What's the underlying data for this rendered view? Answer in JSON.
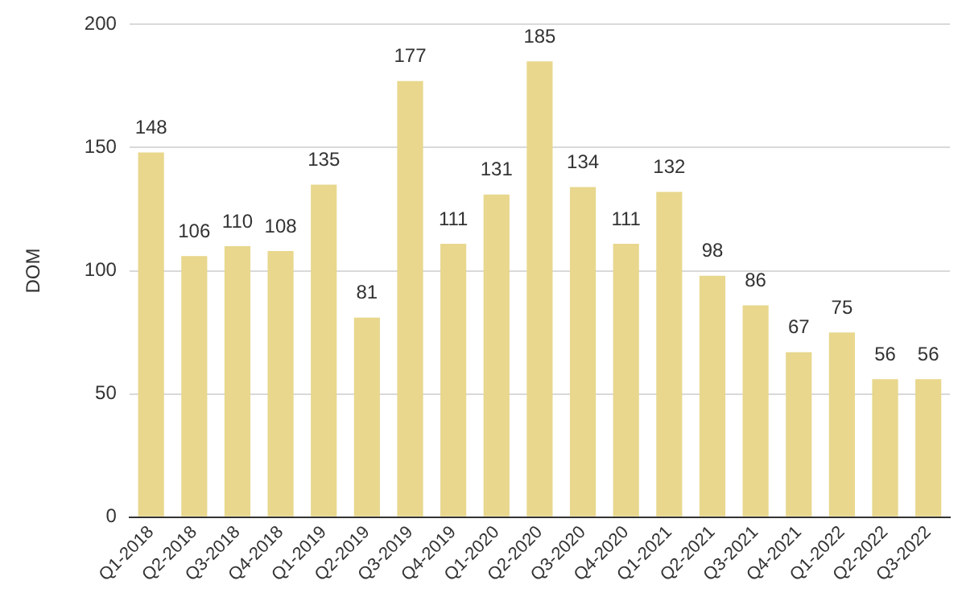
{
  "chart_data": {
    "type": "bar",
    "ylabel": "DOM",
    "categories": [
      "Q1-2018",
      "Q2-2018",
      "Q3-2018",
      "Q4-2018",
      "Q1-2019",
      "Q2-2019",
      "Q3-2019",
      "Q4-2019",
      "Q1-2020",
      "Q2-2020",
      "Q3-2020",
      "Q4-2020",
      "Q1-2021",
      "Q2-2021",
      "Q3-2021",
      "Q4-2021",
      "Q1-2022",
      "Q2-2022",
      "Q3-2022"
    ],
    "values": [
      148,
      106,
      110,
      108,
      135,
      81,
      177,
      111,
      131,
      185,
      134,
      111,
      132,
      98,
      86,
      67,
      75,
      56,
      56
    ],
    "color": "#e8d78d",
    "ylim": [
      0,
      200
    ],
    "yticks": [
      0,
      50,
      100,
      150,
      200
    ],
    "grid": "y",
    "data_labels": true
  }
}
